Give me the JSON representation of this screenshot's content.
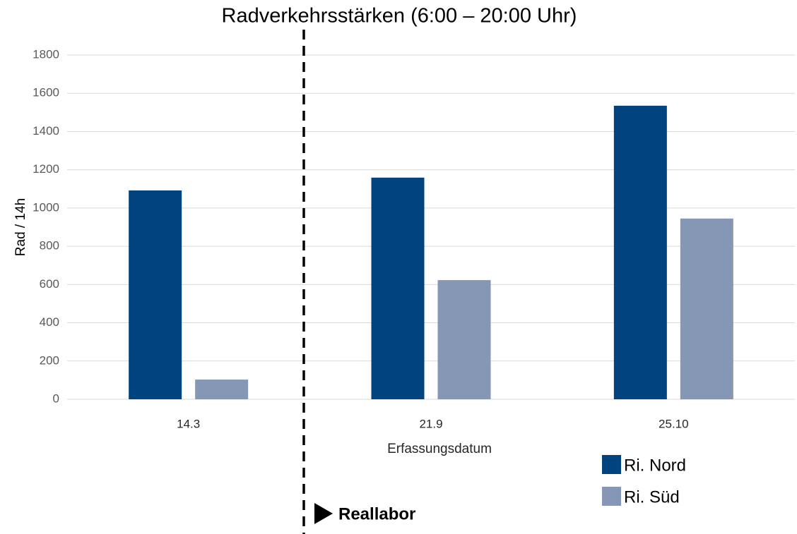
{
  "chart_data": {
    "type": "bar",
    "title": "Radverkehrsstärken (6:00 – 20:00 Uhr)",
    "y_label": "Rad / 14h",
    "x_label": "Erfassungsdatum",
    "annotation": "Reallabor",
    "categories": [
      "14.3",
      "21.9",
      "25.10"
    ],
    "series": [
      {
        "name": "Ri. Nord",
        "color": "#00437f",
        "values": [
          1092,
          1159,
          1535
        ]
      },
      {
        "name": "Ri. Süd",
        "color": "#8696b5",
        "values": [
          103,
          623,
          945
        ]
      }
    ],
    "ylim": [
      0,
      1800
    ],
    "yticks": [
      0,
      200,
      400,
      600,
      800,
      1000,
      1200,
      1400,
      1600,
      1800
    ],
    "grid": true,
    "legend": "bottom-right"
  }
}
